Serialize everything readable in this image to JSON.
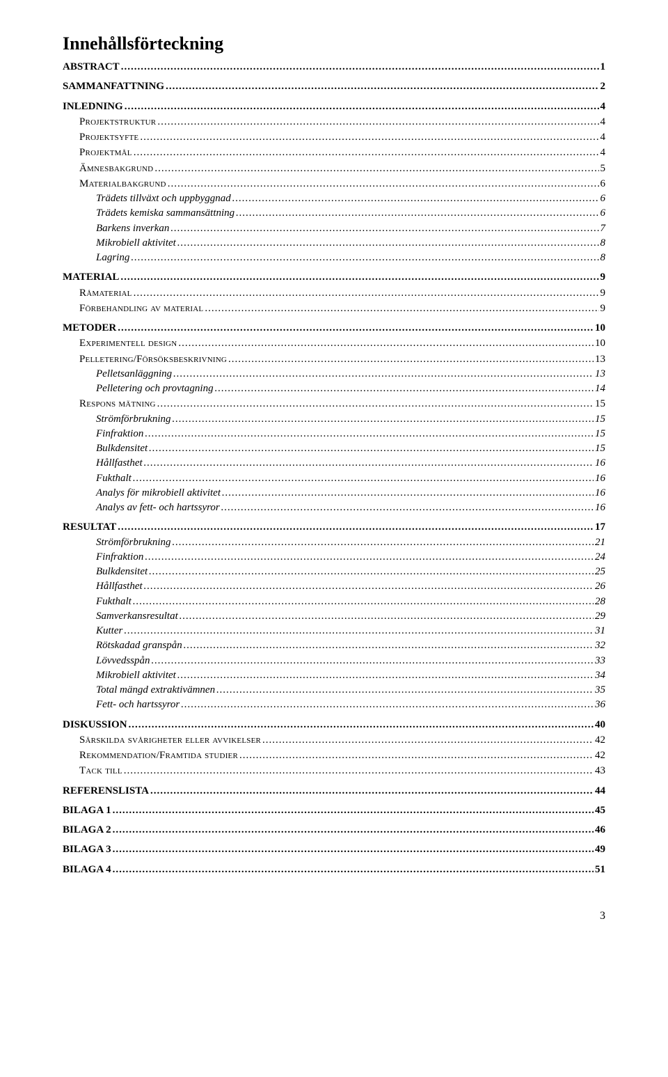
{
  "title": "Innehållsförteckning",
  "footer_page": "3",
  "entries": [
    {
      "level": 0,
      "label": "ABSTRACT",
      "page": "1"
    },
    {
      "level": 0,
      "label": "SAMMANFATTNING",
      "page": "2"
    },
    {
      "level": 0,
      "label": "INLEDNING",
      "page": "4"
    },
    {
      "level": 1,
      "label": "Projektstruktur",
      "page": "4",
      "sc": true
    },
    {
      "level": 1,
      "label": "Projektsyfte",
      "page": "4",
      "sc": true
    },
    {
      "level": 1,
      "label": "Projektmål",
      "page": "4",
      "sc": true
    },
    {
      "level": 1,
      "label": "Ämnesbakgrund",
      "page": "5",
      "sc": true
    },
    {
      "level": 1,
      "label": "Materialbakgrund",
      "page": "6",
      "sc": true
    },
    {
      "level": 2,
      "label": "Trädets tillväxt och uppbyggnad",
      "page": "6"
    },
    {
      "level": 2,
      "label": "Trädets kemiska sammansättning",
      "page": "6"
    },
    {
      "level": 2,
      "label": "Barkens inverkan",
      "page": "7"
    },
    {
      "level": 2,
      "label": "Mikrobiell aktivitet",
      "page": "8"
    },
    {
      "level": 2,
      "label": "Lagring",
      "page": "8"
    },
    {
      "level": 0,
      "label": "MATERIAL",
      "page": "9"
    },
    {
      "level": 1,
      "label": "Råmaterial",
      "page": "9",
      "sc": true
    },
    {
      "level": 1,
      "label": "Förbehandling av material",
      "page": "9",
      "sc": true
    },
    {
      "level": 0,
      "label": "METODER",
      "page": "10"
    },
    {
      "level": 1,
      "label": "Experimentell design",
      "page": "10",
      "sc": true
    },
    {
      "level": 1,
      "label": "Pelletering/Försöksbeskrivning",
      "page": "13",
      "sc": true
    },
    {
      "level": 2,
      "label": "Pelletsanläggning",
      "page": "13"
    },
    {
      "level": 2,
      "label": "Pelletering och provtagning",
      "page": "14"
    },
    {
      "level": 1,
      "label": "Respons mätning",
      "page": "15",
      "sc": true
    },
    {
      "level": 2,
      "label": "Strömförbrukning",
      "page": "15"
    },
    {
      "level": 2,
      "label": "Finfraktion",
      "page": "15"
    },
    {
      "level": 2,
      "label": "Bulkdensitet",
      "page": "15"
    },
    {
      "level": 2,
      "label": "Hållfasthet",
      "page": "16"
    },
    {
      "level": 2,
      "label": "Fukthalt",
      "page": "16"
    },
    {
      "level": 2,
      "label": "Analys för mikrobiell aktivitet",
      "page": "16"
    },
    {
      "level": 2,
      "label": "Analys av fett- och hartssyror",
      "page": "16"
    },
    {
      "level": 0,
      "label": "RESULTAT",
      "page": "17"
    },
    {
      "level": 2,
      "label": "Strömförbrukning",
      "page": "21"
    },
    {
      "level": 2,
      "label": "Finfraktion",
      "page": "24"
    },
    {
      "level": 2,
      "label": "Bulkdensitet",
      "page": "25"
    },
    {
      "level": 2,
      "label": "Hållfasthet",
      "page": "26"
    },
    {
      "level": 2,
      "label": "Fukthalt",
      "page": "28"
    },
    {
      "level": 2,
      "label": "Samverkansresultat",
      "page": "29"
    },
    {
      "level": 2,
      "label": "Kutter",
      "page": "31"
    },
    {
      "level": 2,
      "label": "Rötskadad granspån",
      "page": "32"
    },
    {
      "level": 2,
      "label": "Lövvedsspån",
      "page": "33"
    },
    {
      "level": 2,
      "label": "Mikrobiell aktivitet",
      "page": "34"
    },
    {
      "level": 2,
      "label": "Total mängd extraktivämnen",
      "page": "35"
    },
    {
      "level": 2,
      "label": "Fett- och hartssyror",
      "page": "36"
    },
    {
      "level": 0,
      "label": "DISKUSSION",
      "page": "40"
    },
    {
      "level": 1,
      "label": "Särskilda svårigheter eller avvikelser",
      "page": "42",
      "sc": true
    },
    {
      "level": 1,
      "label": "Rekommendation/Framtida studier",
      "page": "42",
      "sc": true
    },
    {
      "level": 1,
      "label": "Tack till",
      "page": "43",
      "sc": true
    },
    {
      "level": 0,
      "label": "REFERENSLISTA",
      "page": "44"
    },
    {
      "level": 0,
      "label": "BILAGA 1",
      "page": "45"
    },
    {
      "level": 0,
      "label": "BILAGA 2",
      "page": "46"
    },
    {
      "level": 0,
      "label": "BILAGA 3",
      "page": "49"
    },
    {
      "level": 0,
      "label": "BILAGA 4",
      "page": "51"
    }
  ]
}
